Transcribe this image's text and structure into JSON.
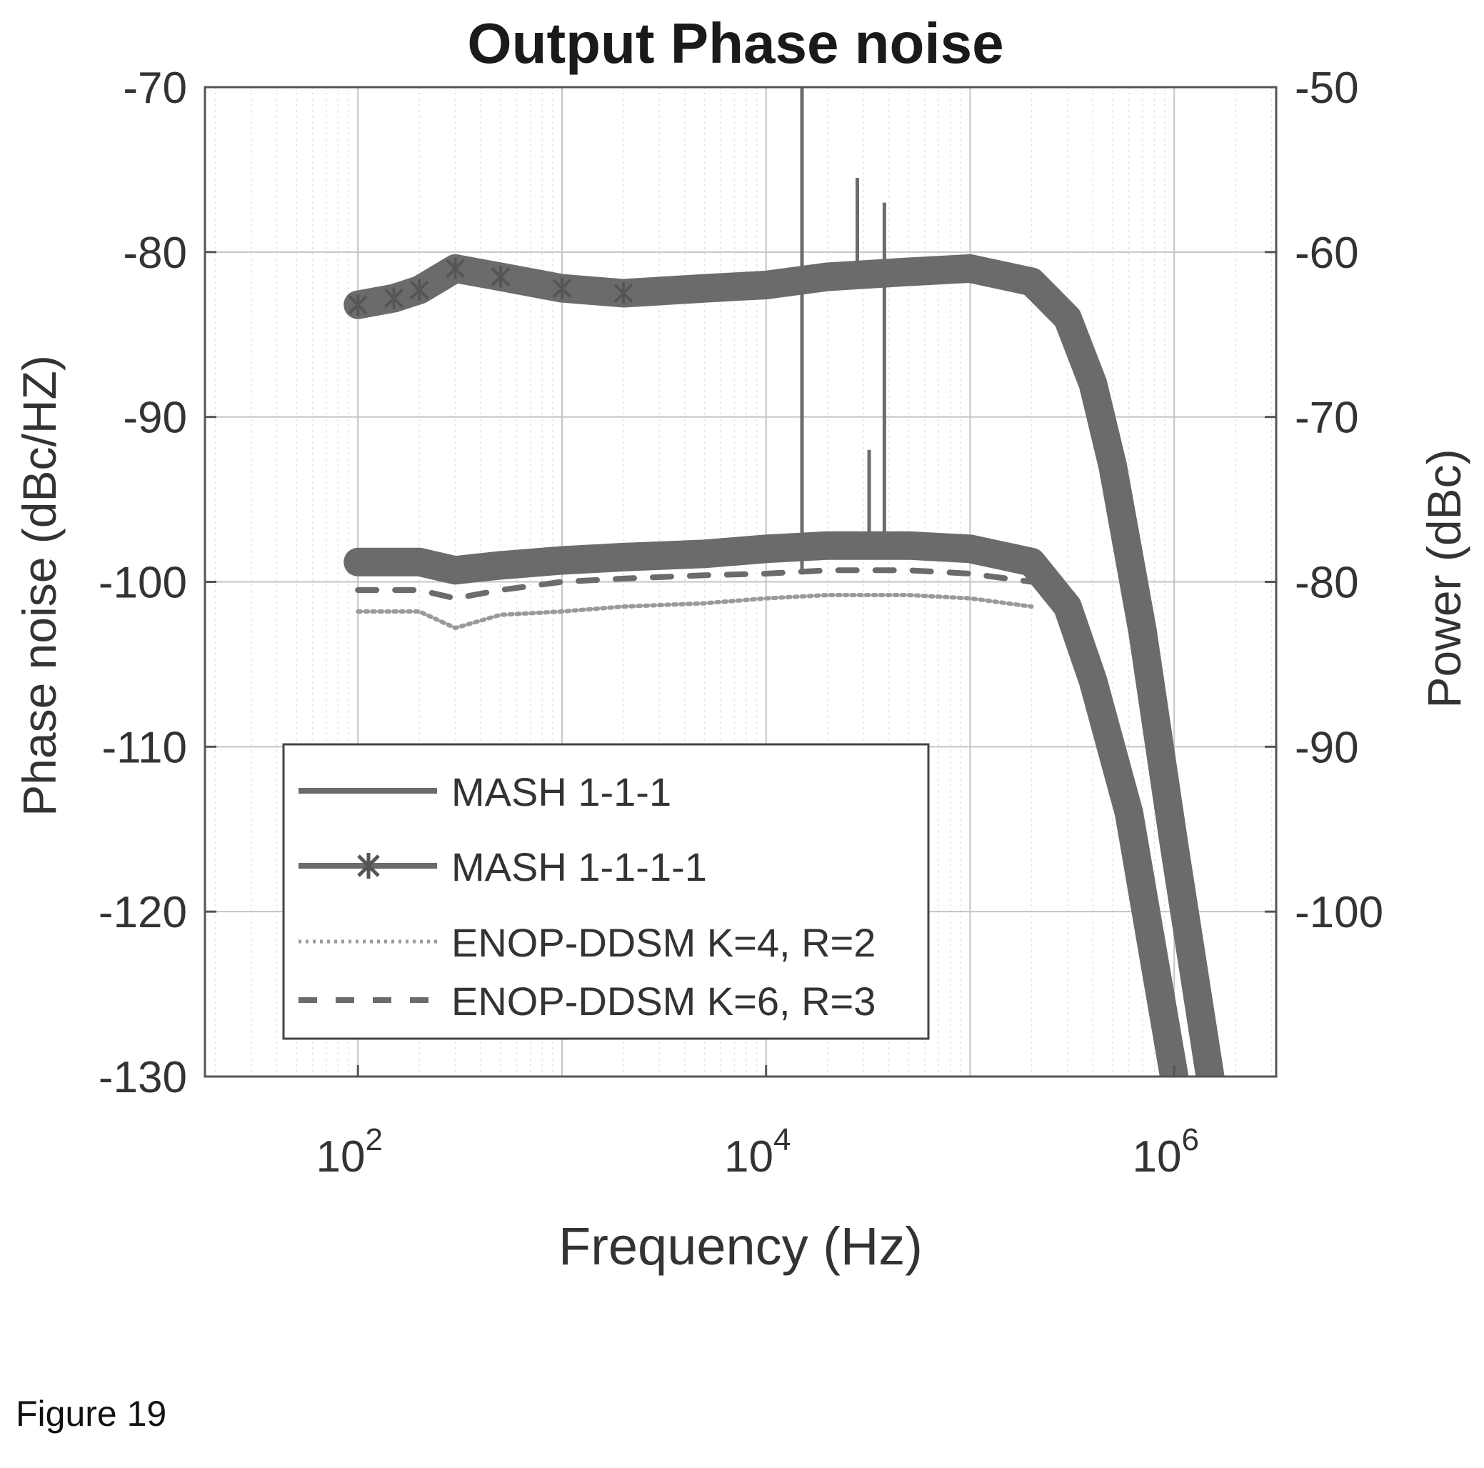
{
  "figure_caption": "Figure 19",
  "chart_data": {
    "type": "line",
    "title": "Output Phase noise",
    "xlabel": "Frequency (Hz)",
    "ylabel": "Phase noise (dBc/HZ)",
    "y2label": "Power (dBc)",
    "xscale": "log",
    "xlim": [
      17.8,
      3160000.0
    ],
    "ylim": [
      -130,
      -70
    ],
    "y2lim": [
      -110,
      -50
    ],
    "grid": true,
    "x_ticks": [
      {
        "value": 100,
        "base": "10",
        "exp": "2"
      },
      {
        "value": 10000,
        "base": "10",
        "exp": "4"
      },
      {
        "value": 1000000,
        "base": "10",
        "exp": "6"
      }
    ],
    "y_ticks": [
      "-70",
      "-80",
      "-90",
      "-100",
      "-110",
      "-120",
      "-130"
    ],
    "y2_ticks": [
      "-50",
      "-60",
      "-70",
      "-80",
      "-90",
      "-100"
    ],
    "legend_position": "lower-left",
    "series": [
      {
        "name": "MASH 1-1-1",
        "style": "solid",
        "color": "#6b6b6b",
        "x": [
          100,
          200,
          300,
          500,
          1000,
          2000,
          5000,
          10000,
          20000,
          50000,
          100000,
          200000,
          300000,
          400000,
          600000,
          1000000
        ],
        "y": [
          -98.8,
          -98.8,
          -99.3,
          -99.0,
          -98.7,
          -98.5,
          -98.3,
          -98.0,
          -97.8,
          -97.8,
          -98.0,
          -98.8,
          -101.5,
          -106.0,
          -114.0,
          -130.0
        ]
      },
      {
        "name": "MASH 1-1-1-1",
        "style": "solid-star",
        "color": "#6b6b6b",
        "x": [
          100,
          150,
          200,
          300,
          500,
          1000,
          2000,
          5000,
          10000,
          20000,
          50000,
          100000,
          200000,
          300000,
          400000,
          500000,
          700000,
          1000000,
          1500000
        ],
        "y": [
          -83.2,
          -82.8,
          -82.3,
          -81.0,
          -81.5,
          -82.2,
          -82.5,
          -82.2,
          -82.0,
          -81.5,
          -81.2,
          -81.0,
          -81.8,
          -84.0,
          -88.0,
          -93.0,
          -103.0,
          -116.0,
          -130.0
        ]
      },
      {
        "name": "ENOP-DDSM K=4, R=2",
        "style": "dotted",
        "color": "#9a9a9a",
        "x": [
          100,
          200,
          300,
          500,
          1000,
          2000,
          5000,
          10000,
          20000,
          50000,
          100000,
          200000
        ],
        "y": [
          -101.8,
          -101.8,
          -102.8,
          -102.0,
          -101.8,
          -101.5,
          -101.3,
          -101.0,
          -100.8,
          -100.8,
          -101.0,
          -101.5
        ]
      },
      {
        "name": "ENOP-DDSM K=6, R=3",
        "style": "dashed",
        "color": "#6b6b6b",
        "x": [
          100,
          200,
          300,
          500,
          1000,
          2000,
          5000,
          10000,
          20000,
          50000,
          100000,
          200000
        ],
        "y": [
          -100.5,
          -100.5,
          -101.0,
          -100.5,
          -100.0,
          -99.8,
          -99.6,
          -99.5,
          -99.3,
          -99.3,
          -99.5,
          -100.0
        ]
      }
    ],
    "spurs": [
      {
        "x": 15000,
        "y_top": -70,
        "y_base": -99.5
      },
      {
        "x": 28000,
        "y_top": -75.5,
        "y_base": -81.5
      },
      {
        "x": 32000,
        "y_top": -92,
        "y_base": -98.5
      },
      {
        "x": 38000,
        "y_top": -77,
        "y_base": -98
      }
    ]
  }
}
